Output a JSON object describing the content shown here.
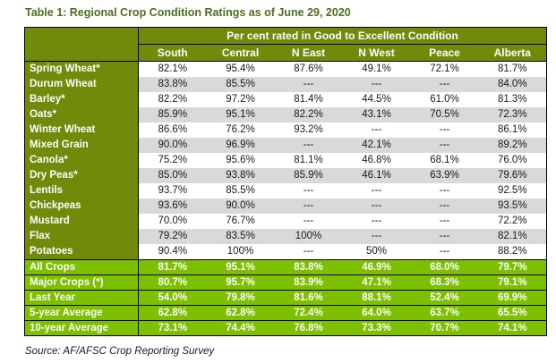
{
  "title": "Table 1: Regional Crop Condition Ratings as of June 29, 2020",
  "source": "Source: AF/AFSC Crop Reporting Survey",
  "colors": {
    "title_green": "#4e6e1e",
    "header_olive": "#6f8b09",
    "summary_green": "#7cc000",
    "stripe_gray": "#d9d9d9",
    "border": "#000000",
    "header_text": "#ffffff"
  },
  "chart_data": {
    "type": "table",
    "title": "Regional Crop Condition Ratings as of June 29, 2020",
    "span_header": "Per cent rated in Good to Excellent Condition",
    "columns": [
      "South",
      "Central",
      "N East",
      "N West",
      "Peace",
      "Alberta"
    ],
    "rows": [
      {
        "label": "Spring Wheat*",
        "values": [
          "82.1%",
          "95.4%",
          "87.6%",
          "49.1%",
          "72.1%",
          "81.7%"
        ]
      },
      {
        "label": "Durum Wheat",
        "values": [
          "83.8%",
          "85.5%",
          "---",
          "---",
          "---",
          "84.0%"
        ]
      },
      {
        "label": "Barley*",
        "values": [
          "82.2%",
          "97.2%",
          "81.4%",
          "44.5%",
          "61.0%",
          "81.3%"
        ]
      },
      {
        "label": "Oats*",
        "values": [
          "85.9%",
          "95.1%",
          "82.2%",
          "43.1%",
          "70.5%",
          "72.3%"
        ]
      },
      {
        "label": "Winter Wheat",
        "values": [
          "86.6%",
          "76.2%",
          "93.2%",
          "---",
          "---",
          "86.1%"
        ]
      },
      {
        "label": "Mixed Grain",
        "values": [
          "90.0%",
          "96.9%",
          "---",
          "42.1%",
          "---",
          "89.2%"
        ]
      },
      {
        "label": "Canola*",
        "values": [
          "75.2%",
          "95.6%",
          "81.1%",
          "46.8%",
          "68.1%",
          "76.0%"
        ]
      },
      {
        "label": "Dry Peas*",
        "values": [
          "85.0%",
          "93.8%",
          "85.9%",
          "46.1%",
          "63.9%",
          "79.6%"
        ]
      },
      {
        "label": "Lentils",
        "values": [
          "93.7%",
          "85.5%",
          "---",
          "---",
          "---",
          "92.5%"
        ]
      },
      {
        "label": "Chickpeas",
        "values": [
          "93.6%",
          "90.0%",
          "---",
          "---",
          "---",
          "93.5%"
        ]
      },
      {
        "label": "Mustard",
        "values": [
          "70.0%",
          "76.7%",
          "---",
          "---",
          "---",
          "72.2%"
        ]
      },
      {
        "label": "Flax",
        "values": [
          "79.2%",
          "83.5%",
          "100%",
          "---",
          "---",
          "82.1%"
        ]
      },
      {
        "label": "Potatoes",
        "values": [
          "90.4%",
          "100%",
          "---",
          "50%",
          "---",
          "88.2%"
        ]
      }
    ],
    "summary_rows": [
      {
        "label": "All Crops",
        "values": [
          "81.7%",
          "95.1%",
          "83.8%",
          "46.9%",
          "68.0%",
          "79.7%"
        ]
      },
      {
        "label": "Major Crops (*)",
        "values": [
          "80.7%",
          "95.7%",
          "83.9%",
          "47.1%",
          "68.3%",
          "79.1%"
        ]
      },
      {
        "label": "Last Year",
        "values": [
          "54.0%",
          "79.8%",
          "81.6%",
          "88.1%",
          "52.4%",
          "69.9%"
        ]
      },
      {
        "label": "5-year Average",
        "values": [
          "62.8%",
          "62.8%",
          "72.4%",
          "64.0%",
          "63.7%",
          "65.5%"
        ]
      },
      {
        "label": "10-year Average",
        "values": [
          "73.1%",
          "74.4%",
          "76.8%",
          "73.3%",
          "70.7%",
          "74.1%"
        ]
      }
    ]
  }
}
